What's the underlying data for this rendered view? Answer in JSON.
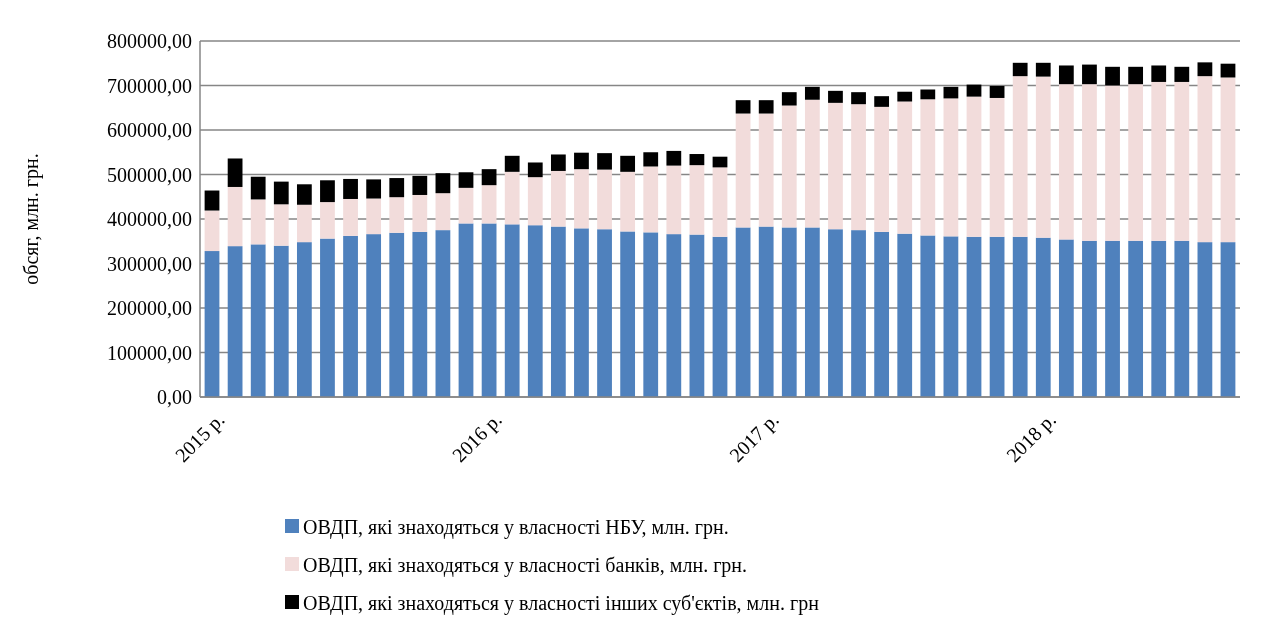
{
  "chart_data": {
    "type": "bar",
    "stacked": true,
    "ylabel": "обсяг, млн. грн.",
    "categories": [
      "2015 р.",
      null,
      null,
      null,
      null,
      null,
      null,
      null,
      null,
      null,
      null,
      null,
      "2016 р.",
      null,
      null,
      null,
      null,
      null,
      null,
      null,
      null,
      null,
      null,
      null,
      "2017 р.",
      null,
      null,
      null,
      null,
      null,
      null,
      null,
      null,
      null,
      null,
      null,
      "2018 р.",
      null,
      null,
      null,
      null,
      null,
      null,
      null,
      null
    ],
    "series": [
      {
        "name": "ОВДП, які знаходяться у власності НБУ, млн. грн.",
        "color": "#4f81bd",
        "values": [
          328000,
          339000,
          343000,
          340000,
          348000,
          356000,
          362000,
          366000,
          369000,
          371000,
          375000,
          390000,
          390000,
          388000,
          386000,
          383000,
          379000,
          377000,
          372000,
          370000,
          366000,
          365000,
          360000,
          381000,
          383000,
          381000,
          381000,
          377000,
          375000,
          371000,
          367000,
          363000,
          361000,
          360000,
          360000,
          360000,
          358000,
          354000,
          351000,
          351000,
          351000,
          351000,
          351000,
          348000,
          348000
        ]
      },
      {
        "name": "ОВДП, які знаходяться у власності банків, млн. грн.",
        "color": "#f2dcdb",
        "values": [
          91000,
          133000,
          101000,
          93000,
          84000,
          82000,
          83000,
          80000,
          80000,
          83000,
          83000,
          80000,
          86000,
          118000,
          108000,
          125000,
          133000,
          134000,
          134000,
          148000,
          154000,
          156000,
          156000,
          256000,
          254000,
          274000,
          287000,
          284000,
          283000,
          281000,
          297000,
          306000,
          310000,
          315000,
          312000,
          361000,
          362000,
          349000,
          352000,
          349000,
          352000,
          357000,
          357000,
          373000,
          370000
        ]
      },
      {
        "name": "ОВДП, які знаходяться у власності інших суб'єктів, млн. грн",
        "color": "#000000",
        "values": [
          45000,
          64000,
          51000,
          51000,
          46000,
          49000,
          45000,
          43000,
          43000,
          43000,
          45000,
          35000,
          36000,
          36000,
          33000,
          37000,
          37000,
          37000,
          36000,
          32000,
          33000,
          25000,
          24000,
          30000,
          30000,
          30000,
          29000,
          27000,
          27000,
          24000,
          22000,
          22000,
          26000,
          27000,
          27000,
          30000,
          31000,
          42000,
          44000,
          42000,
          39000,
          37000,
          34000,
          31000,
          31000
        ]
      }
    ],
    "ylim": [
      0,
      800000
    ],
    "yticks": [
      {
        "value": 0,
        "label": "0,00"
      },
      {
        "value": 100000,
        "label": "100000,00"
      },
      {
        "value": 200000,
        "label": "200000,00"
      },
      {
        "value": 300000,
        "label": "300000,00"
      },
      {
        "value": 400000,
        "label": "400000,00"
      },
      {
        "value": 500000,
        "label": "500000,00"
      },
      {
        "value": 600000,
        "label": "600000,00"
      },
      {
        "value": 700000,
        "label": "700000,00"
      },
      {
        "value": 800000,
        "label": "800000,00"
      }
    ],
    "grid": "y",
    "legend": "bottom"
  }
}
